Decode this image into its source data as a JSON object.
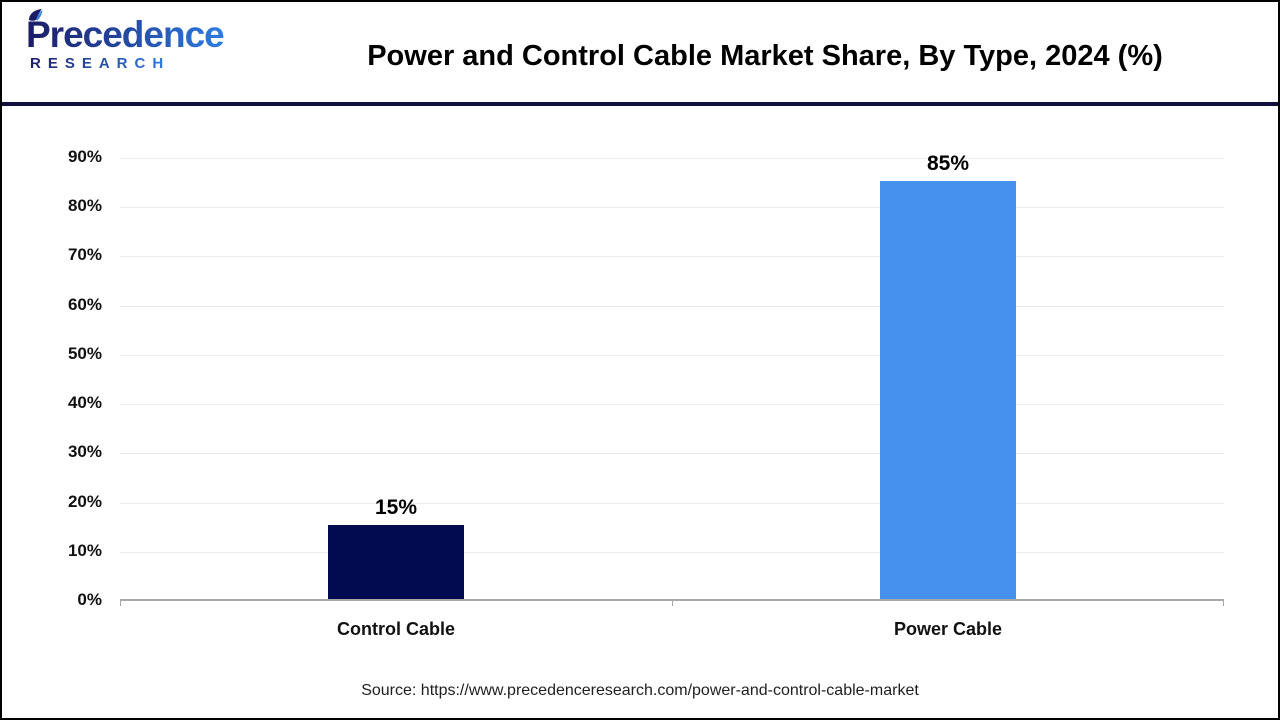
{
  "brand": {
    "name": "Precedence",
    "subname": "RESEARCH"
  },
  "header": {
    "title": "Power and Control Cable Market Share, By Type, 2024 (%)"
  },
  "footer": {
    "source": "Source: https://www.precedenceresearch.com/power-and-control-cable-market"
  },
  "chart_data": {
    "type": "bar",
    "title": "Power and Control Cable Market Share, By Type, 2024 (%)",
    "categories": [
      "Control Cable",
      "Power Cable"
    ],
    "values": [
      15,
      85
    ],
    "value_labels": [
      "15%",
      "85%"
    ],
    "bar_colors": [
      "#030b50",
      "#4691ee"
    ],
    "xlabel": "",
    "ylabel": "",
    "ylim": [
      0,
      90
    ],
    "ytick_step": 10,
    "ytick_labels": [
      "0%",
      "10%",
      "20%",
      "30%",
      "40%",
      "50%",
      "60%",
      "70%",
      "80%",
      "90%"
    ],
    "grid": true,
    "legend": false,
    "gridline_color": "#ebebeb",
    "axis_color": "#a8a8a8"
  }
}
